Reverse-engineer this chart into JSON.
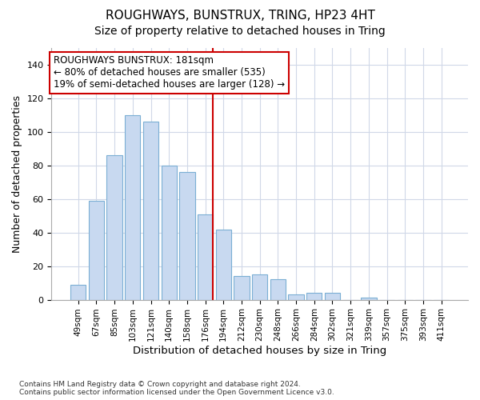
{
  "title": "ROUGHWAYS, BUNSTRUX, TRING, HP23 4HT",
  "subtitle": "Size of property relative to detached houses in Tring",
  "xlabel": "Distribution of detached houses by size in Tring",
  "ylabel": "Number of detached properties",
  "categories": [
    "49sqm",
    "67sqm",
    "85sqm",
    "103sqm",
    "121sqm",
    "140sqm",
    "158sqm",
    "176sqm",
    "194sqm",
    "212sqm",
    "230sqm",
    "248sqm",
    "266sqm",
    "284sqm",
    "302sqm",
    "321sqm",
    "339sqm",
    "357sqm",
    "375sqm",
    "393sqm",
    "411sqm"
  ],
  "values": [
    9,
    59,
    86,
    110,
    106,
    80,
    76,
    51,
    42,
    14,
    15,
    12,
    3,
    4,
    4,
    0,
    1,
    0,
    0,
    0,
    0
  ],
  "bar_color": "#c8d9f0",
  "bar_edge_color": "#7bafd4",
  "vline_x_index": 7,
  "vline_color": "#cc0000",
  "annotation_line1": "ROUGHWAYS BUNSTRUX: 181sqm",
  "annotation_line2": "← 80% of detached houses are smaller (535)",
  "annotation_line3": "19% of semi-detached houses are larger (128) →",
  "annotation_box_edge_color": "#cc0000",
  "annotation_box_face_color": "#ffffff",
  "ylim": [
    0,
    150
  ],
  "yticks": [
    0,
    20,
    40,
    60,
    80,
    100,
    120,
    140
  ],
  "footer_text": "Contains HM Land Registry data © Crown copyright and database right 2024.\nContains public sector information licensed under the Open Government Licence v3.0.",
  "background_color": "#ffffff",
  "grid_color": "#d0d8e8",
  "title_fontsize": 11,
  "subtitle_fontsize": 10,
  "axis_label_fontsize": 9,
  "tick_fontsize": 7.5,
  "annotation_fontsize": 8.5
}
